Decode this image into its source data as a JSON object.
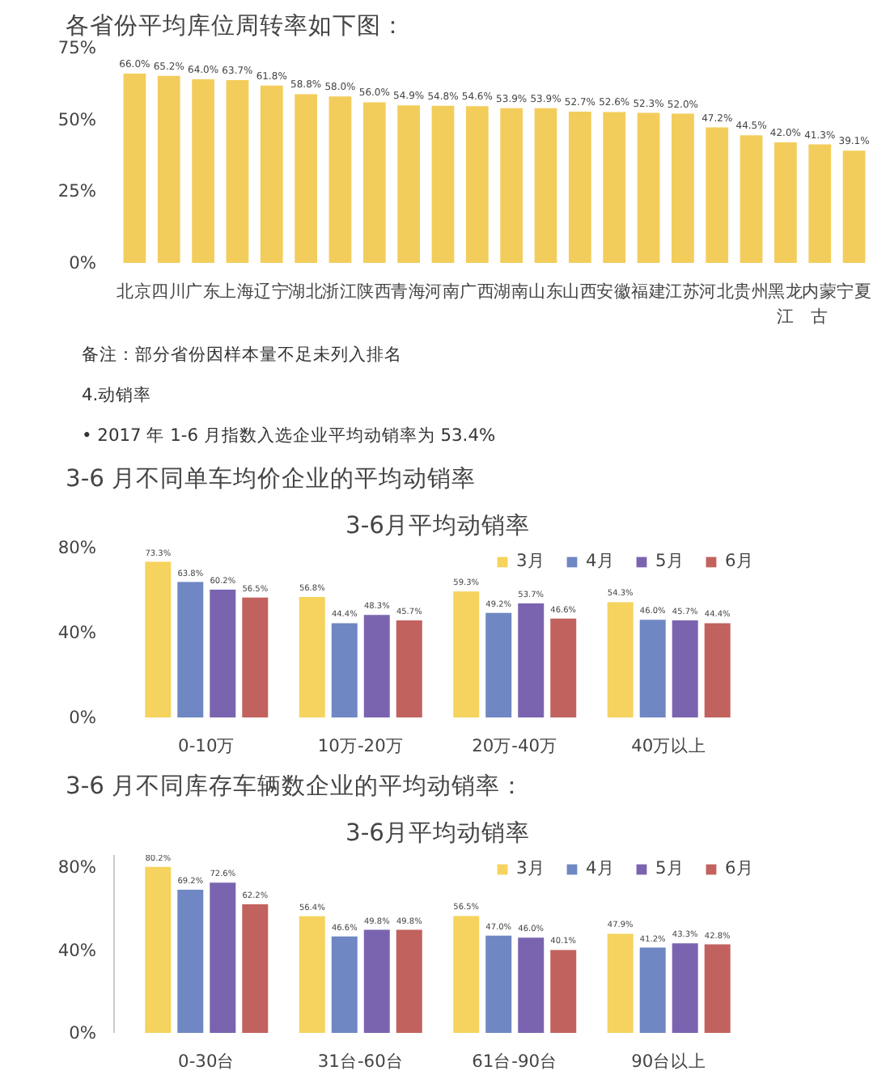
{
  "chart_data": [
    {
      "type": "bar",
      "title": "各省份平均库位周转率如下图：",
      "categories": [
        "北京",
        "四川",
        "广东",
        "上海",
        "辽宁",
        "湖北",
        "浙江",
        "陕西",
        "青海",
        "河南",
        "广西",
        "湖南",
        "山东",
        "山西",
        "安徽",
        "福建",
        "江苏",
        "河北",
        "贵州",
        "黑龙江",
        "内蒙古",
        "宁夏"
      ],
      "values": [
        66.0,
        65.2,
        64.0,
        63.7,
        61.8,
        58.8,
        58.0,
        56.0,
        54.9,
        54.8,
        54.6,
        53.9,
        53.9,
        52.7,
        52.6,
        52.3,
        52.0,
        47.2,
        44.5,
        42.0,
        41.3,
        39.1
      ],
      "value_labels": [
        "66.0%",
        "65.2%",
        "64.0%",
        "63.7%",
        "61.8%",
        "58.8%",
        "58.0%",
        "56.0%",
        "54.9%",
        "54.8%",
        "54.6%",
        "53.9%",
        "53.9%",
        "52.7%",
        "52.6%",
        "52.3%",
        "52.0%",
        "47.2%",
        "44.5%",
        "42.0%",
        "41.3%",
        "39.1%"
      ],
      "color": "#f3cd5c",
      "ylim": [
        0,
        75
      ],
      "yticks": [
        {
          "value": 0,
          "label": "0%"
        },
        {
          "value": 25,
          "label": "25%"
        },
        {
          "value": 50,
          "label": "50%"
        },
        {
          "value": 75,
          "label": "75%"
        }
      ],
      "grid": false,
      "annotations": [
        "备注：部分省份因样本量不足未列入排名",
        "4.动销率",
        "•    2017 年 1-6 月指数入选企业平均动销率为 53.4%"
      ]
    },
    {
      "type": "bar",
      "title": "3-6 月不同单车均价企业的平均动销率",
      "subtitle": "3-6月平均动销率",
      "categories": [
        "0-10万",
        "10万-20万",
        "20万-40万",
        "40万以上"
      ],
      "series": [
        {
          "name": "3月",
          "color": "#f5d35e",
          "values": [
            73.3,
            56.8,
            59.3,
            54.3
          ],
          "value_labels": [
            "73.3%",
            "56.8%",
            "59.3%",
            "54.3%"
          ]
        },
        {
          "name": "4月",
          "color": "#6f87c2",
          "values": [
            63.8,
            44.4,
            49.2,
            46.0
          ],
          "value_labels": [
            "63.8%",
            "44.4%",
            "49.2%",
            "46.0%"
          ]
        },
        {
          "name": "5月",
          "color": "#7a64b0",
          "values": [
            60.2,
            48.3,
            53.7,
            45.7
          ],
          "value_labels": [
            "60.2%",
            "48.3%",
            "53.7%",
            "45.7%"
          ]
        },
        {
          "name": "6月",
          "color": "#c2625e",
          "values": [
            56.5,
            45.7,
            46.6,
            44.4
          ],
          "value_labels": [
            "56.5%",
            "45.7%",
            "46.6%",
            "44.4%"
          ]
        }
      ],
      "ylim": [
        0,
        80
      ],
      "yticks": [
        {
          "value": 0,
          "label": "0%"
        },
        {
          "value": 40,
          "label": "40%"
        },
        {
          "value": 80,
          "label": "80%"
        }
      ],
      "grid": false,
      "legend": "top right"
    },
    {
      "type": "bar",
      "title": "3-6 月不同库存车辆数企业的平均动销率：",
      "subtitle": "3-6月平均动销率",
      "categories": [
        "0-30台",
        "31台-60台",
        "61台-90台",
        "90台以上"
      ],
      "series": [
        {
          "name": "3月",
          "color": "#f5d35e",
          "values": [
            80.2,
            56.4,
            56.5,
            47.9
          ],
          "value_labels": [
            "80.2%",
            "56.4%",
            "56.5%",
            "47.9%"
          ]
        },
        {
          "name": "4月",
          "color": "#6f87c2",
          "values": [
            69.2,
            46.6,
            47.0,
            41.2
          ],
          "value_labels": [
            "69.2%",
            "46.6%",
            "47.0%",
            "41.2%"
          ]
        },
        {
          "name": "5月",
          "color": "#7a64b0",
          "values": [
            72.6,
            49.8,
            46.0,
            43.3
          ],
          "value_labels": [
            "72.6%",
            "49.8%",
            "46.0%",
            "43.3%"
          ]
        },
        {
          "name": "6月",
          "color": "#c2625e",
          "values": [
            62.2,
            49.8,
            40.1,
            42.8
          ],
          "value_labels": [
            "62.2%",
            "49.8%",
            "40.1%",
            "42.8%"
          ]
        }
      ],
      "ylim": [
        0,
        86
      ],
      "yticks": [
        {
          "value": 0,
          "label": "0%"
        },
        {
          "value": 40,
          "label": "40%"
        },
        {
          "value": 80,
          "label": "80%"
        }
      ],
      "grid": false,
      "legend": "top right"
    }
  ]
}
